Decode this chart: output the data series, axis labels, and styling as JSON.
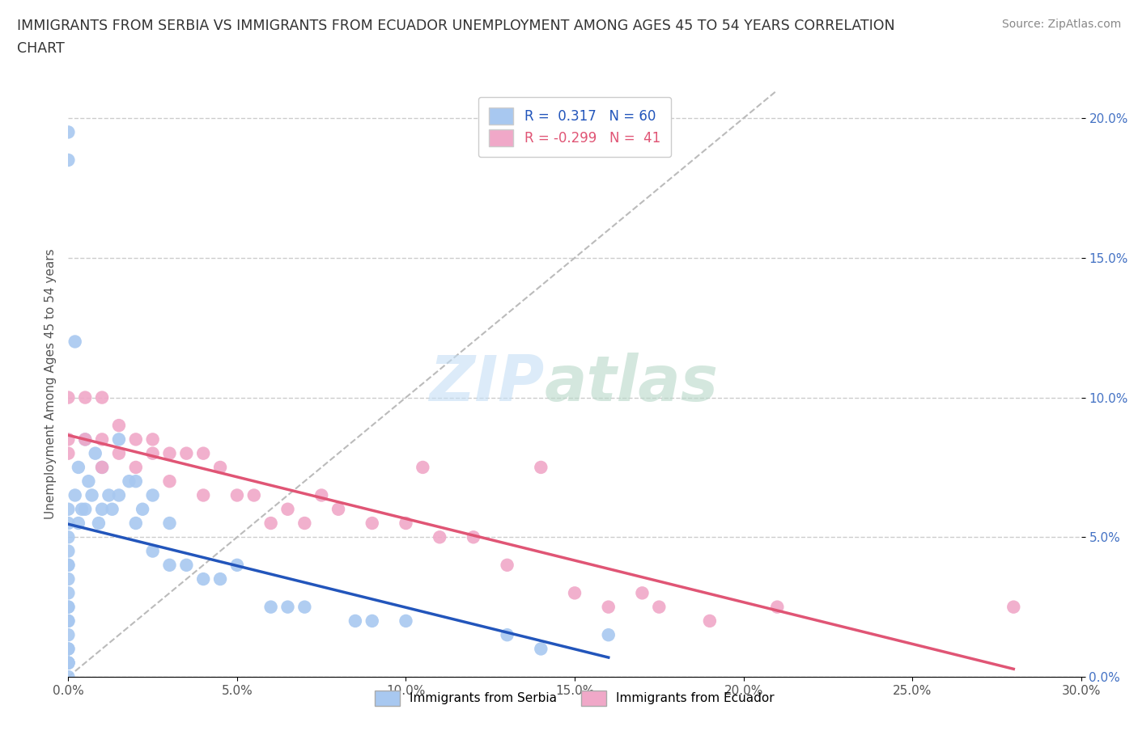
{
  "title_line1": "IMMIGRANTS FROM SERBIA VS IMMIGRANTS FROM ECUADOR UNEMPLOYMENT AMONG AGES 45 TO 54 YEARS CORRELATION",
  "title_line2": "CHART",
  "source": "Source: ZipAtlas.com",
  "ylabel": "Unemployment Among Ages 45 to 54 years",
  "xlim": [
    0.0,
    0.3
  ],
  "ylim": [
    0.0,
    0.21
  ],
  "x_ticks": [
    0.0,
    0.05,
    0.1,
    0.15,
    0.2,
    0.25,
    0.3
  ],
  "x_tick_labels": [
    "0.0%",
    "5.0%",
    "10.0%",
    "15.0%",
    "20.0%",
    "25.0%",
    "30.0%"
  ],
  "y_ticks": [
    0.0,
    0.05,
    0.1,
    0.15,
    0.2
  ],
  "y_tick_labels": [
    "0.0%",
    "5.0%",
    "10.0%",
    "15.0%",
    "20.0%"
  ],
  "serbia_color": "#a8c8f0",
  "ecuador_color": "#f0a8c8",
  "serbia_line_color": "#2255bb",
  "ecuador_line_color": "#e05575",
  "serbia_R": 0.317,
  "serbia_N": 60,
  "ecuador_R": -0.299,
  "ecuador_N": 41,
  "legend_labels": [
    "Immigrants from Serbia",
    "Immigrants from Ecuador"
  ],
  "serbia_x": [
    0.0,
    0.0,
    0.0,
    0.0,
    0.0,
    0.0,
    0.0,
    0.0,
    0.0,
    0.0,
    0.0,
    0.0,
    0.0,
    0.0,
    0.0,
    0.0,
    0.0,
    0.0,
    0.0,
    0.0,
    0.0,
    0.0,
    0.002,
    0.002,
    0.003,
    0.003,
    0.004,
    0.005,
    0.005,
    0.006,
    0.007,
    0.008,
    0.009,
    0.01,
    0.01,
    0.012,
    0.013,
    0.015,
    0.015,
    0.018,
    0.02,
    0.02,
    0.022,
    0.025,
    0.025,
    0.03,
    0.03,
    0.035,
    0.04,
    0.045,
    0.05,
    0.06,
    0.065,
    0.07,
    0.085,
    0.09,
    0.1,
    0.13,
    0.14,
    0.16
  ],
  "serbia_y": [
    0.195,
    0.185,
    0.06,
    0.055,
    0.05,
    0.045,
    0.04,
    0.04,
    0.035,
    0.03,
    0.025,
    0.025,
    0.02,
    0.02,
    0.015,
    0.01,
    0.01,
    0.005,
    0.005,
    0.005,
    0.005,
    0.0,
    0.12,
    0.065,
    0.075,
    0.055,
    0.06,
    0.085,
    0.06,
    0.07,
    0.065,
    0.08,
    0.055,
    0.075,
    0.06,
    0.065,
    0.06,
    0.085,
    0.065,
    0.07,
    0.07,
    0.055,
    0.06,
    0.065,
    0.045,
    0.055,
    0.04,
    0.04,
    0.035,
    0.035,
    0.04,
    0.025,
    0.025,
    0.025,
    0.02,
    0.02,
    0.02,
    0.015,
    0.01,
    0.015
  ],
  "ecuador_x": [
    0.0,
    0.0,
    0.0,
    0.005,
    0.005,
    0.01,
    0.01,
    0.01,
    0.015,
    0.015,
    0.02,
    0.02,
    0.025,
    0.025,
    0.03,
    0.03,
    0.035,
    0.04,
    0.04,
    0.045,
    0.05,
    0.055,
    0.06,
    0.065,
    0.07,
    0.075,
    0.08,
    0.09,
    0.1,
    0.105,
    0.11,
    0.12,
    0.13,
    0.14,
    0.15,
    0.16,
    0.17,
    0.175,
    0.19,
    0.21,
    0.28
  ],
  "ecuador_y": [
    0.1,
    0.085,
    0.08,
    0.1,
    0.085,
    0.1,
    0.085,
    0.075,
    0.09,
    0.08,
    0.085,
    0.075,
    0.085,
    0.08,
    0.08,
    0.07,
    0.08,
    0.08,
    0.065,
    0.075,
    0.065,
    0.065,
    0.055,
    0.06,
    0.055,
    0.065,
    0.06,
    0.055,
    0.055,
    0.075,
    0.05,
    0.05,
    0.04,
    0.075,
    0.03,
    0.025,
    0.03,
    0.025,
    0.02,
    0.025,
    0.025
  ]
}
